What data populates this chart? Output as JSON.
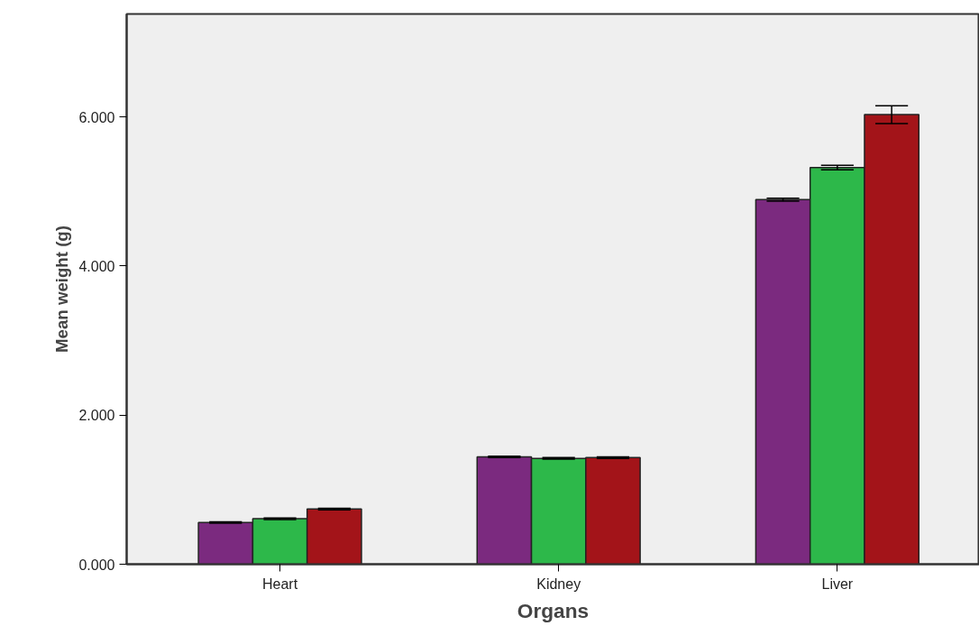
{
  "chart_data": {
    "type": "bar",
    "xlabel": "Organs",
    "ylabel": "Mean weight (g)",
    "categories": [
      "Heart",
      "Kidney",
      "Liver"
    ],
    "series": [
      {
        "color": "#7b2a7f",
        "values": [
          0.56,
          1.44,
          4.89
        ],
        "errors": [
          0.01,
          0.01,
          0.02
        ]
      },
      {
        "color": "#2db84a",
        "values": [
          0.61,
          1.42,
          5.32
        ],
        "errors": [
          0.01,
          0.01,
          0.03
        ]
      },
      {
        "color": "#a31419",
        "values": [
          0.74,
          1.43,
          6.03
        ],
        "errors": [
          0.01,
          0.01,
          [
            5.91,
            6.15
          ]
        ]
      }
    ],
    "ylim": [
      0,
      7.38
    ],
    "yticks": [
      {
        "value": 0,
        "label": "0.000"
      },
      {
        "value": 2,
        "label": "2.000"
      },
      {
        "value": 4,
        "label": "4.000"
      },
      {
        "value": 6,
        "label": "6.000"
      }
    ],
    "grid": false
  }
}
